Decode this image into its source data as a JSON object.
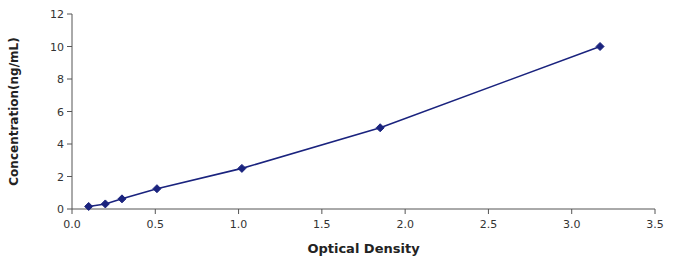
{
  "chart_data": {
    "type": "line",
    "xlabel": "Optical Density",
    "ylabel": "Concentration(ng/mL)",
    "x": [
      0.1,
      0.2,
      0.3,
      0.51,
      1.02,
      1.85,
      3.17
    ],
    "values": [
      0.156,
      0.312,
      0.625,
      1.25,
      2.5,
      5.0,
      10.0
    ],
    "color": "#1a237e",
    "marker": "diamond",
    "xlim": [
      0,
      3.5
    ],
    "ylim": [
      0,
      12
    ],
    "xticks": [
      {
        "value": 0,
        "label": "0.0"
      },
      0.5,
      {
        "value": 1.0,
        "label": "1.0"
      },
      1.5,
      {
        "value": 2.0,
        "label": "2.0"
      },
      2.5,
      {
        "value": 3.0,
        "label": "3.0"
      },
      3.5
    ],
    "yticks": [
      0,
      2,
      4,
      6,
      8,
      10,
      12
    ],
    "grid": false
  }
}
